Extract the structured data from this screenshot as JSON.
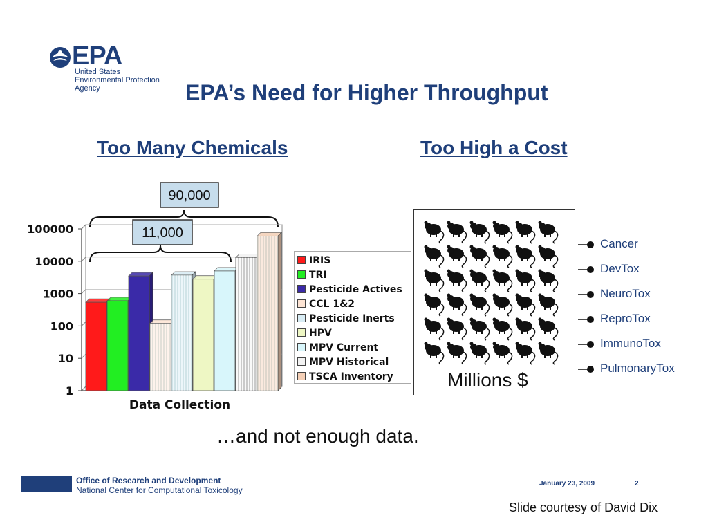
{
  "header": {
    "logo_text": "EPA",
    "logo_line1": "United States",
    "logo_line2": "Environmental Protection",
    "logo_line3": "Agency",
    "title": "EPA’s Need for Higher Throughput"
  },
  "left_heading": "Too Many Chemicals",
  "right_heading": "Too High a Cost",
  "chart_data": {
    "type": "bar",
    "scale": "log",
    "xlabel": "Data Collection",
    "ylabel": "",
    "ylim": [
      1,
      100000
    ],
    "y_ticks": [
      "1",
      "10",
      "100",
      "1000",
      "10000",
      "100000"
    ],
    "categories": [
      "IRIS",
      "TRI",
      "Pesticide Actives",
      "CCL 1&2",
      "Pesticide Inerts",
      "HPV",
      "MPV Current",
      "MPV Historical",
      "TSCA Inventory"
    ],
    "values": [
      540,
      600,
      3500,
      120,
      3700,
      2800,
      5000,
      13000,
      60000
    ],
    "colors": [
      "#ff1a1a",
      "#22ee22",
      "#3a2aa8",
      "#fde4d4",
      "#d8ecf4",
      "#eef7c4",
      "#d8f6fb",
      "#f2f2f2",
      "#f4cfb6"
    ],
    "annotations": [
      {
        "text": "90,000",
        "value": 90000
      },
      {
        "text": "11,000",
        "value": 11000
      }
    ]
  },
  "right_panel": {
    "label": "Millions $",
    "endpoints": [
      "Cancer",
      "DevTox",
      "NeuroTox",
      "ReproTox",
      "ImmunoTox",
      "PulmonaryTox"
    ]
  },
  "tagline": "…and not enough data.",
  "footer": {
    "office": "Office of Research and Development",
    "center": "National Center for Computational Toxicology",
    "date": "January 23, 2009",
    "page": "2",
    "courtesy": "Slide courtesy of David Dix"
  },
  "colors": {
    "brand": "#1f3f7a",
    "annotation_box": "#c7ddec"
  }
}
